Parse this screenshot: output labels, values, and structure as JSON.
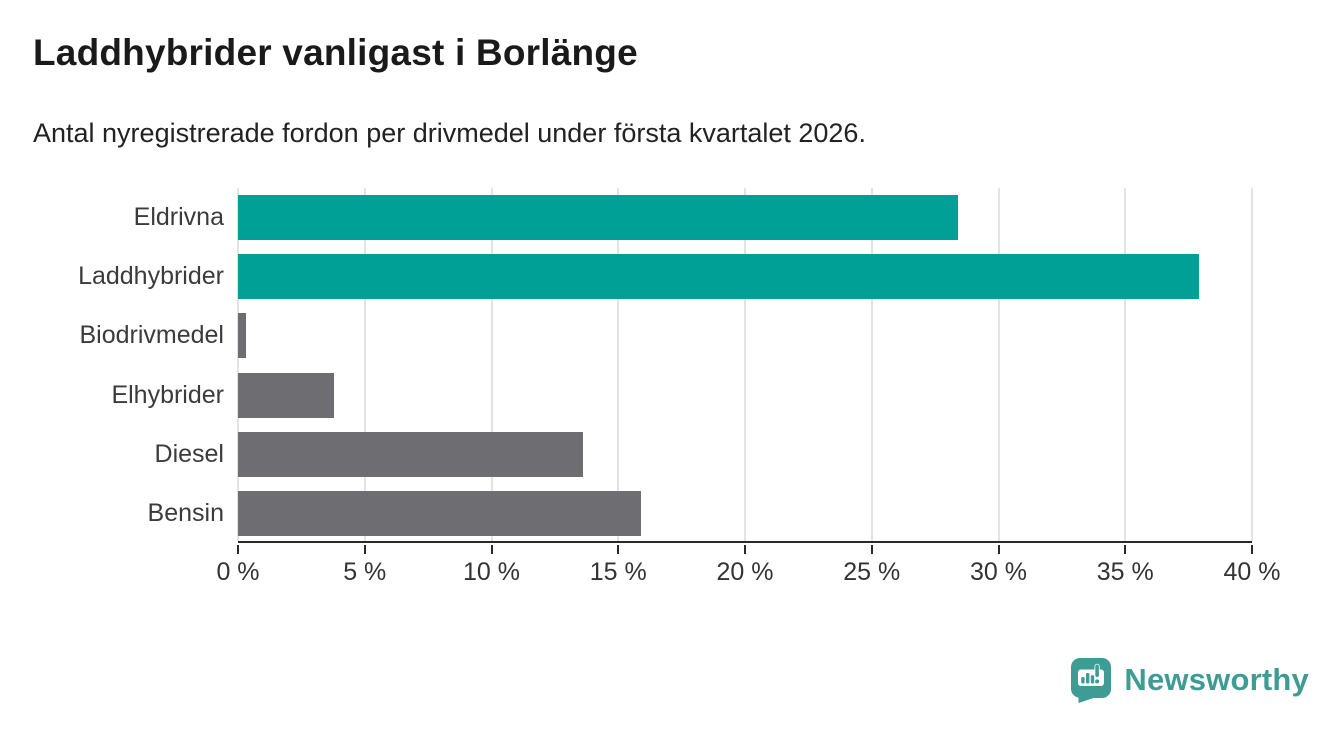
{
  "header": {
    "title": "Laddhybrider vanligast i Borlänge",
    "subtitle": "Antal nyregistrerade fordon per drivmedel under första kvartalet 2026."
  },
  "chart_data": {
    "type": "bar",
    "orientation": "horizontal",
    "title": "Laddhybrider vanligast i Borlänge",
    "subtitle": "Antal nyregistrerade fordon per drivmedel under första kvartalet 2026.",
    "categories": [
      "Eldrivna",
      "Laddhybrider",
      "Biodrivmedel",
      "Elhybrider",
      "Diesel",
      "Bensin"
    ],
    "values": [
      28.4,
      37.9,
      0.3,
      3.8,
      13.6,
      15.9
    ],
    "unit": "%",
    "bar_colors": [
      "#00a096",
      "#00a096",
      "#6d6d72",
      "#6d6d72",
      "#6d6d72",
      "#6d6d72"
    ],
    "highlight_color": "#00a096",
    "default_color": "#6d6d72",
    "xlabel": "",
    "ylabel": "",
    "xlim": [
      0,
      40
    ],
    "x_ticks": [
      0,
      5,
      10,
      15,
      20,
      25,
      30,
      35,
      40
    ],
    "x_tick_labels": [
      "0 %",
      "5 %",
      "10 %",
      "15 %",
      "20 %",
      "25 %",
      "30 %",
      "35 %",
      "40 %"
    ],
    "grid": "vertical",
    "gridline_color": "#e3e3e3",
    "axis_color": "#2a2a2a",
    "legend": "none"
  },
  "footer": {
    "brand": "Newsworthy",
    "brand_color": "#3e9c95",
    "brand_icon": "newsworthy-chart-bubble-icon"
  }
}
